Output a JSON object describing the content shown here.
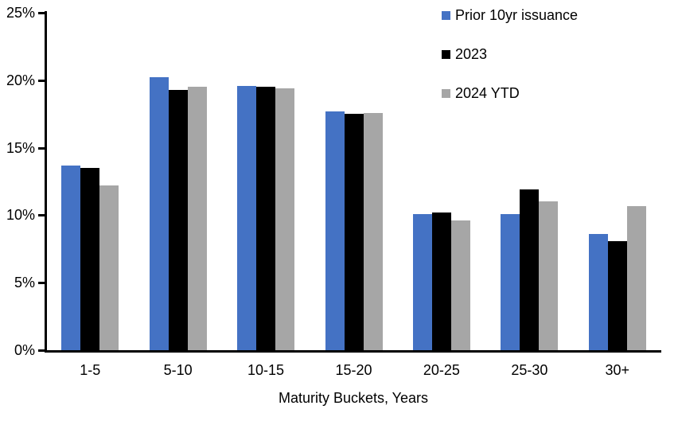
{
  "chart_data": {
    "type": "bar",
    "title": "",
    "categories": [
      "1-5",
      "5-10",
      "10-15",
      "15-20",
      "20-25",
      "25-30",
      "30+"
    ],
    "series": [
      {
        "name": "Prior 10yr issuance",
        "color": "#4472C4",
        "values": [
          13.7,
          20.2,
          19.6,
          17.7,
          10.1,
          10.1,
          8.6
        ]
      },
      {
        "name": "2023",
        "color": "#000000",
        "values": [
          13.5,
          19.3,
          19.5,
          17.5,
          10.2,
          11.9,
          8.1
        ]
      },
      {
        "name": "2024 YTD",
        "color": "#A6A6A6",
        "values": [
          12.2,
          19.5,
          19.4,
          17.6,
          9.6,
          11.0,
          10.7
        ]
      }
    ],
    "xlabel": "Maturity Buckets, Years",
    "ylabel": "",
    "ylim": [
      0,
      25
    ],
    "yticks": [
      0,
      5,
      10,
      15,
      20,
      25
    ],
    "ytick_labels": [
      "0%",
      "5%",
      "10%",
      "15%",
      "20%",
      "25%"
    ],
    "grid": false,
    "legend_position": "top-right",
    "axis_color": "#000000",
    "background": "#FFFFFF"
  }
}
